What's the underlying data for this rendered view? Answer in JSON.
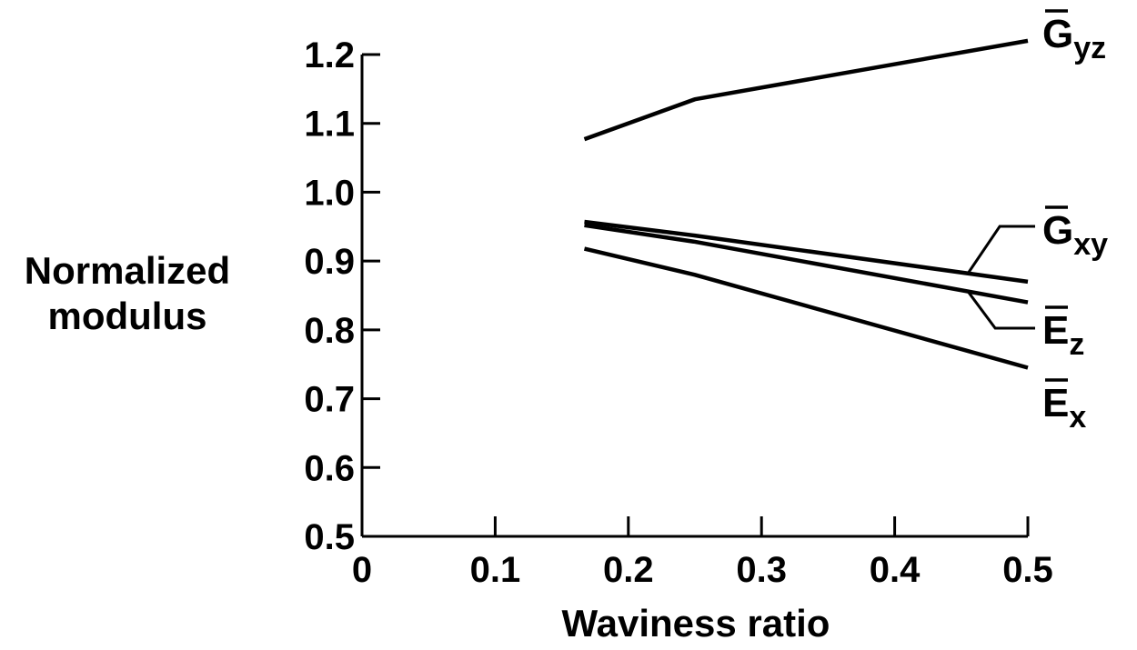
{
  "chart_data": {
    "type": "line",
    "title": "",
    "xlabel": "Waviness ratio",
    "ylabel_lines": [
      "Normalized",
      "modulus"
    ],
    "xlim": [
      0,
      0.5
    ],
    "ylim": [
      0.5,
      1.2
    ],
    "x_ticks": [
      "0",
      "0.1",
      "0.2",
      "0.3",
      "0.4",
      "0.5"
    ],
    "y_ticks": [
      "0.5",
      "0.6",
      "0.7",
      "0.8",
      "0.9",
      "1.0",
      "1.1",
      "1.2"
    ],
    "grid": false,
    "legend": "none",
    "line_color": "#000000",
    "series": [
      {
        "name": "G",
        "subscript": "yz",
        "x": [
          0.167,
          0.25,
          0.5
        ],
        "y": [
          1.077,
          1.135,
          1.22
        ]
      },
      {
        "name": "G",
        "subscript": "xy",
        "x": [
          0.167,
          0.25,
          0.5
        ],
        "y": [
          0.957,
          0.937,
          0.87
        ]
      },
      {
        "name": "E",
        "subscript": "z",
        "x": [
          0.167,
          0.25,
          0.5
        ],
        "y": [
          0.952,
          0.928,
          0.84
        ]
      },
      {
        "name": "E",
        "subscript": "x",
        "x": [
          0.167,
          0.25,
          0.5
        ],
        "y": [
          0.918,
          0.88,
          0.745
        ]
      }
    ]
  }
}
